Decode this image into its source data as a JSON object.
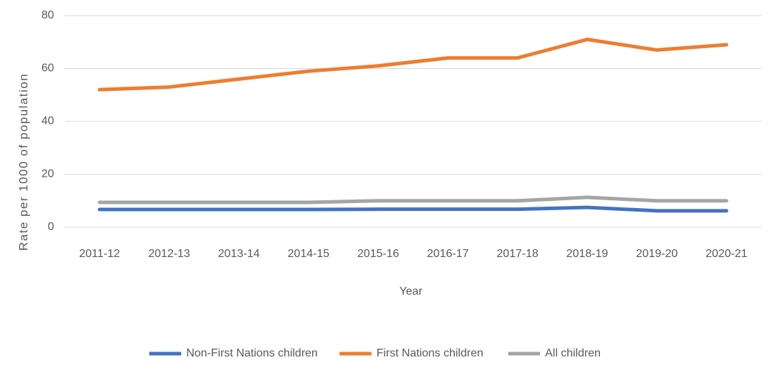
{
  "chart_data": {
    "type": "line",
    "x_label": "Year",
    "y_label": "Rate per 1000 of population",
    "categories": [
      "2011-12",
      "2012-13",
      "2013-14",
      "2014-15",
      "2015-16",
      "2016-17",
      "2017-18",
      "2018-19",
      "2019-20",
      "2020-21"
    ],
    "series": [
      {
        "name": "Non-First Nations children",
        "color": "#4472c4",
        "values": [
          6.7,
          6.7,
          6.7,
          6.7,
          6.8,
          6.8,
          6.8,
          7.5,
          6.2,
          6.2
        ]
      },
      {
        "name": "First Nations children",
        "color": "#ed7d31",
        "values": [
          52,
          53,
          56,
          59,
          61,
          64,
          64,
          71,
          67,
          69
        ]
      },
      {
        "name": "All children",
        "color": "#a5a5a5",
        "values": [
          9.4,
          9.4,
          9.4,
          9.4,
          10,
          10,
          10,
          11.3,
          10,
          10
        ]
      }
    ],
    "ylim": [
      0,
      80
    ],
    "yticks": [
      0,
      20,
      40,
      60,
      80
    ],
    "grid": true,
    "legend": "bottom"
  }
}
